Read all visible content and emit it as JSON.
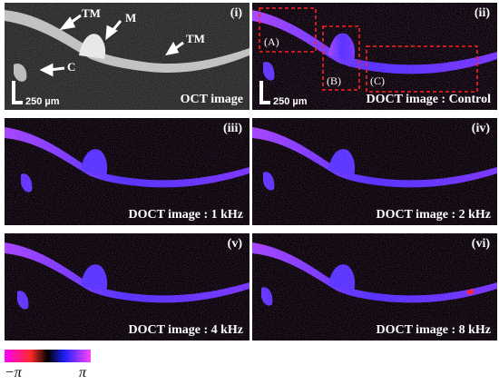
{
  "panels": [
    {
      "id": "i",
      "label": "(i)",
      "caption": "OCT image",
      "scale": "250 µm"
    },
    {
      "id": "ii",
      "label": "(ii)",
      "caption": "DOCT image : Control",
      "scale": "250 µm"
    },
    {
      "id": "iii",
      "label": "(iii)",
      "caption": "DOCT image : 1 kHz"
    },
    {
      "id": "iv",
      "label": "(iv)",
      "caption": "DOCT image : 2 kHz"
    },
    {
      "id": "v",
      "label": "(v)",
      "caption": "DOCT image : 4 kHz"
    },
    {
      "id": "vi",
      "label": "(vi)",
      "caption": "DOCT image : 8 kHz"
    }
  ],
  "annotations": {
    "tm1": "TM",
    "m": "M",
    "tm2": "TM",
    "c": "C"
  },
  "regions": {
    "a": "(A)",
    "b": "(B)",
    "c": "(C)"
  },
  "colorbar": {
    "min": "−π",
    "max": "π"
  },
  "colors": {
    "roi_box": "#ff2020",
    "doct_primary": "#5a2cff",
    "doct_highlight": "#ff33ff"
  }
}
